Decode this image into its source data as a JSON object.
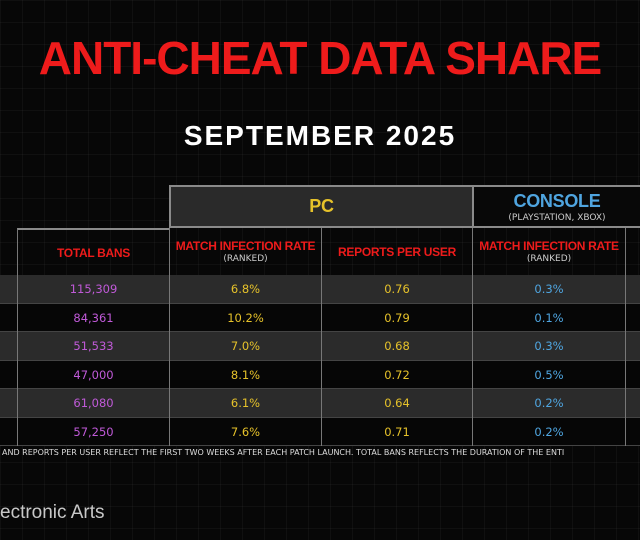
{
  "title": "ANTI-CHEAT DATA SHARE",
  "subtitle": "SEPTEMBER 2025",
  "groups": {
    "pc": {
      "label": "PC"
    },
    "console": {
      "label": "CONSOLE",
      "sublabel": "(PLAYSTATION, XBOX)"
    }
  },
  "columns": [
    {
      "label": "TOTAL BANS",
      "sub": ""
    },
    {
      "label": "MATCH INFECTION RATE",
      "sub": "(RANKED)"
    },
    {
      "label": "REPORTS PER USER",
      "sub": ""
    },
    {
      "label": "MATCH INFECTION RATE",
      "sub": "(RANKED)"
    }
  ],
  "rows": [
    {
      "bans": "115,309",
      "pc_rate": "6.8%",
      "pc_reports": "0.76",
      "console_rate": "0.3%"
    },
    {
      "bans": "84,361",
      "pc_rate": "10.2%",
      "pc_reports": "0.79",
      "console_rate": "0.1%"
    },
    {
      "bans": "51,533",
      "pc_rate": "7.0%",
      "pc_reports": "0.68",
      "console_rate": "0.3%"
    },
    {
      "bans": "47,000",
      "pc_rate": "8.1%",
      "pc_reports": "0.72",
      "console_rate": "0.5%"
    },
    {
      "bans": "61,080",
      "pc_rate": "6.1%",
      "pc_reports": "0.64",
      "console_rate": "0.2%"
    },
    {
      "bans": "57,250",
      "pc_rate": "7.6%",
      "pc_reports": "0.71",
      "console_rate": "0.2%"
    }
  ],
  "footnote": "AND REPORTS PER USER REFLECT THE FIRST TWO WEEKS AFTER EACH PATCH LAUNCH. TOTAL BANS REFLECTS THE DURATION OF THE ENTI",
  "brand": "ectronic Arts",
  "colors": {
    "title": "#ee1b1b",
    "bans": "#c05ad8",
    "pc": "#e6c22a",
    "console": "#4fa5e0"
  }
}
